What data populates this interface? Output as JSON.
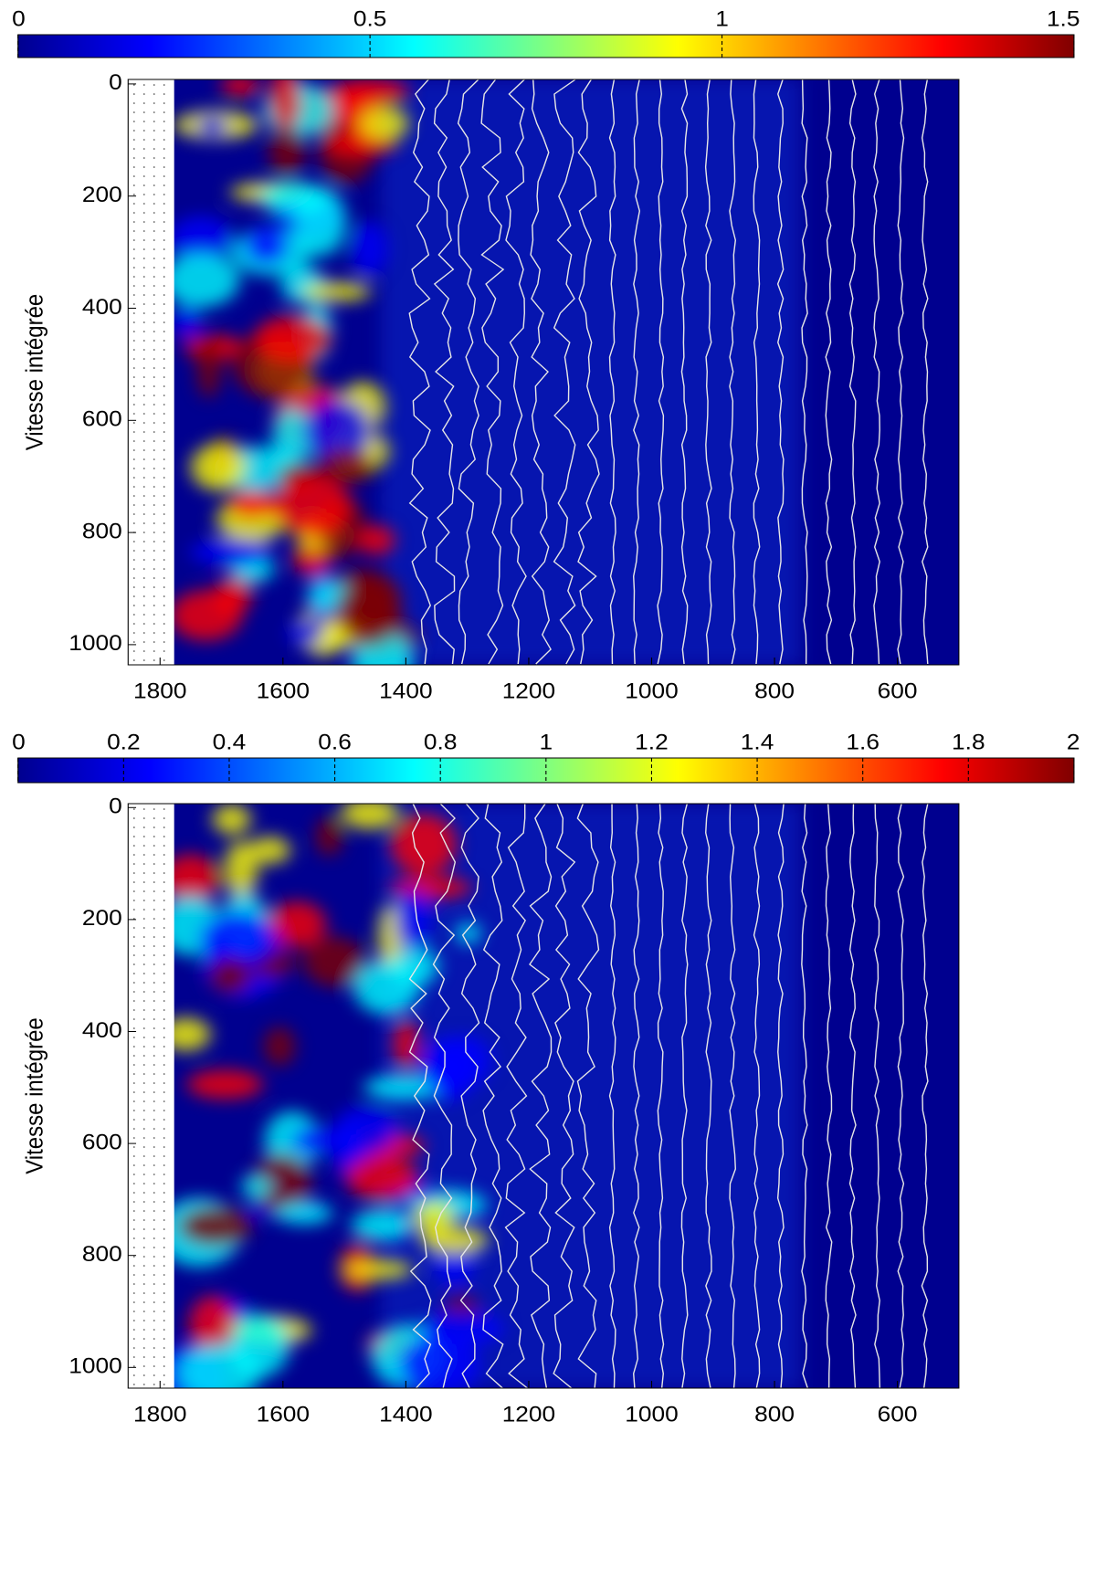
{
  "chart_data": [
    {
      "type": "heatmap",
      "colormap": "jet",
      "ylabel": "Vitesse intégrée",
      "clim": [
        0,
        1.5
      ],
      "cticks": [
        0,
        0.5,
        1,
        1.5
      ],
      "xlim": [
        1852,
        500
      ],
      "xticks": [
        1800,
        1600,
        1400,
        1200,
        1000,
        800,
        600
      ],
      "ylim": [
        -8,
        1036
      ],
      "yticks": [
        0,
        200,
        400,
        600,
        800,
        1000
      ]
    },
    {
      "type": "heatmap",
      "colormap": "jet",
      "ylabel": "Vitesse intégrée",
      "clim": [
        0,
        2
      ],
      "cticks": [
        0,
        0.2,
        0.4,
        0.6,
        0.8,
        1,
        1.2,
        1.4,
        1.6,
        1.8,
        2
      ],
      "xlim": [
        1852,
        500
      ],
      "xticks": [
        1800,
        1600,
        1400,
        1200,
        1000,
        800,
        600
      ],
      "ylim": [
        -7,
        1037
      ],
      "yticks": [
        0,
        200,
        400,
        600,
        800,
        1000
      ]
    }
  ]
}
